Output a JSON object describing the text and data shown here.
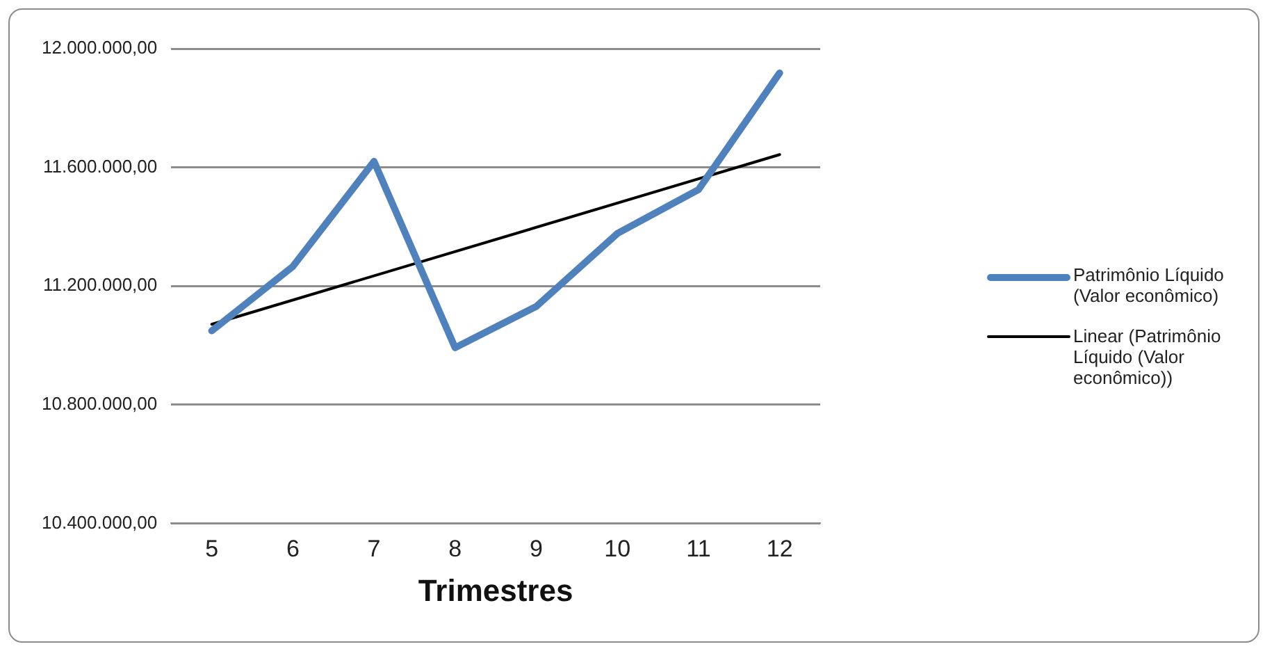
{
  "chart_data": {
    "type": "line",
    "xlabel": "Trimestres",
    "x": [
      5,
      6,
      7,
      8,
      9,
      10,
      11,
      12
    ],
    "xlim": [
      4.5,
      12.5
    ],
    "xticks": [
      5,
      6,
      7,
      8,
      9,
      10,
      11,
      12
    ],
    "ylim": [
      10400000,
      12000000
    ],
    "yticks": [
      {
        "value": 10400000,
        "label": "10.400.000,00"
      },
      {
        "value": 10800000,
        "label": "10.800.000,00"
      },
      {
        "value": 11200000,
        "label": "11.200.000,00"
      },
      {
        "value": 11600000,
        "label": "11.600.000,00"
      },
      {
        "value": 12000000,
        "label": "12.000.000,00"
      }
    ],
    "grid": "y",
    "legend": "right",
    "marker": "none",
    "series": [
      {
        "name": "Patrimônio Líquido (Valor econômico)",
        "color": "#4f81bd",
        "values": [
          11049000,
          11266000,
          11620000,
          10992000,
          11131000,
          11377000,
          11525000,
          11918000
        ]
      },
      {
        "type": "line",
        "name": "Linear (Patrimônio Líquido (Valor econômico))",
        "color": "#000000",
        "x": [
          5,
          12
        ],
        "values": [
          11071000,
          11643000
        ]
      }
    ]
  }
}
